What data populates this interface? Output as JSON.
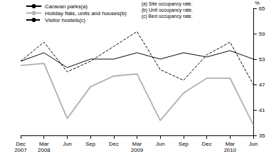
{
  "chart_data": {
    "type": "line",
    "y_label": "%",
    "categories": [
      "Dec\n2007",
      "Mar\n2008",
      "Jun",
      "Sep",
      "Dec",
      "Mar\n2009",
      "Jun",
      "Sep",
      "Dec",
      "Mar\n2010",
      "Jun"
    ],
    "series": [
      {
        "name": "Caravan parks(a)",
        "color": "#000000",
        "line_style": "solid",
        "values": [
          52.5,
          54.5,
          51,
          53,
          53,
          54.5,
          53,
          54.5,
          53.5,
          55,
          53
        ]
      },
      {
        "name": "Holiday flats, units and houses(b)",
        "color": "#b3b3b3",
        "line_style": "solid",
        "values": [
          51.5,
          52,
          39,
          46.5,
          49,
          49.5,
          38.5,
          45,
          48.5,
          48.5,
          37.5
        ]
      },
      {
        "name": "Visitor hostels(c)",
        "color": "#000000",
        "line_style": "dashed",
        "values": [
          52.5,
          57,
          50,
          52.5,
          56,
          59.5,
          50.5,
          48,
          54,
          57,
          47
        ]
      }
    ],
    "notes": [
      "(a) Site occupancy rate.",
      "(b) Unit occupancy rate.",
      "(c) Bed occupancy rate."
    ],
    "ylim": [
      35,
      65
    ],
    "yticks": [
      35,
      41,
      47,
      53,
      59,
      65
    ],
    "grid": false,
    "legend": "top-left"
  }
}
